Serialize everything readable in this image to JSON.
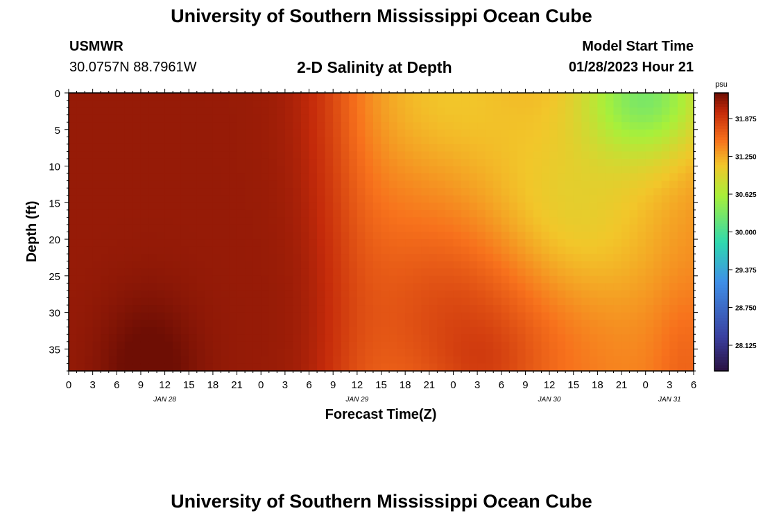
{
  "header": {
    "title": "University of Southern Mississippi Ocean Cube",
    "station": "USMWR",
    "coords": "30.0757N  88.7961W",
    "subtitle": "2-D Salinity at Depth",
    "model_start_label": "Model Start Time",
    "model_start_value": "01/28/2023 Hour 21"
  },
  "footer": {
    "title": "University of Southern Mississippi Ocean Cube"
  },
  "chart_data": {
    "type": "heatmap",
    "title": "2-D Salinity at Depth",
    "xlabel": "Forecast Time(Z)",
    "ylabel": "Depth (ft)",
    "x_tick_labels": [
      "0",
      "3",
      "6",
      "9",
      "12",
      "15",
      "18",
      "21",
      "0",
      "3",
      "6",
      "9",
      "12",
      "15",
      "18",
      "21",
      "0",
      "3",
      "6",
      "9",
      "12",
      "15",
      "18",
      "21",
      "0",
      "3",
      "6"
    ],
    "date_labels": [
      {
        "label": "JAN 28",
        "hour": 12
      },
      {
        "label": "JAN 29",
        "hour": 36
      },
      {
        "label": "JAN 30",
        "hour": 60
      },
      {
        "label": "JAN 31",
        "hour": 75
      }
    ],
    "xlim": [
      0,
      78
    ],
    "ylim": [
      0,
      38
    ],
    "y_ticks": [
      0,
      5,
      10,
      15,
      20,
      25,
      30,
      35
    ],
    "colorbar": {
      "unit": "psu",
      "ticks": [
        "31.875",
        "31.250",
        "30.625",
        "30.000",
        "29.375",
        "28.750",
        "28.125"
      ],
      "range": [
        27.7,
        32.3
      ]
    },
    "colors": {
      "dark_low": "#2a1040",
      "purple": "#3a3f9e",
      "blue": "#3f8fe8",
      "cyan": "#2ed8b0",
      "green": "#a8f03a",
      "yellow": "#f2c62a",
      "orange": "#f7711c",
      "red": "#c42a0a",
      "dark_high": "#6e0e04"
    },
    "grid": false,
    "legend": "right colorbar"
  }
}
